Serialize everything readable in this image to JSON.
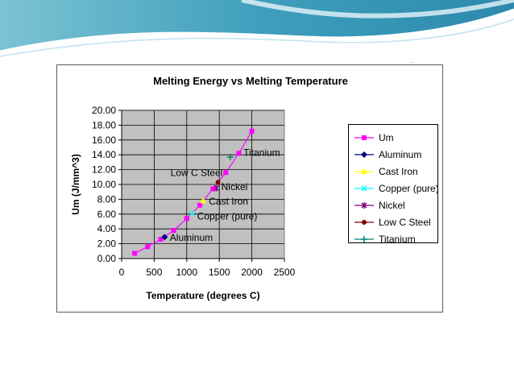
{
  "chart_data": {
    "type": "scatter",
    "title": "Melting Energy vs Melting Temperature",
    "xlabel": "Temperature (degrees C)",
    "ylabel": "Um (J/mm^3)",
    "xlim": [
      0,
      2500
    ],
    "ylim": [
      0,
      20
    ],
    "xticks": [
      "0",
      "500",
      "1000",
      "1500",
      "2000",
      "2500"
    ],
    "yticks": [
      "0.00",
      "2.00",
      "4.00",
      "6.00",
      "8.00",
      "10.00",
      "12.00",
      "14.00",
      "16.00",
      "18.00",
      "20.00"
    ],
    "grid": true,
    "legend_position": "right",
    "plot_background": "#c0c0c0",
    "series": [
      {
        "name": "Um",
        "color": "#ff00ff",
        "marker": "square",
        "line": true,
        "x": [
          200,
          400,
          600,
          800,
          1000,
          1200,
          1400,
          1600,
          1800,
          2000
        ],
        "y": [
          0.7,
          1.6,
          2.6,
          3.8,
          5.4,
          7.2,
          9.4,
          11.6,
          14.2,
          17.2
        ]
      },
      {
        "name": "Aluminum",
        "color": "#000080",
        "marker": "diamond",
        "line": false,
        "x": [
          660
        ],
        "y": [
          2.9
        ]
      },
      {
        "name": "Cast Iron",
        "color": "#ffff00",
        "marker": "triangle",
        "line": false,
        "x": [
          1250
        ],
        "y": [
          7.8
        ]
      },
      {
        "name": "Copper (pure)",
        "color": "#00ffff",
        "marker": "x",
        "line": false,
        "x": [
          1083
        ],
        "y": [
          6.1
        ]
      },
      {
        "name": "Nickel",
        "color": "#800080",
        "marker": "star",
        "line": false,
        "x": [
          1455
        ],
        "y": [
          9.5
        ]
      },
      {
        "name": "Low C Steel",
        "color": "#800000",
        "marker": "circle",
        "line": false,
        "x": [
          1480
        ],
        "y": [
          10.3
        ]
      },
      {
        "name": "Titanium",
        "color": "#008080",
        "marker": "plus",
        "line": false,
        "x": [
          1668
        ],
        "y": [
          13.7
        ]
      }
    ],
    "annotations": [
      {
        "text": "Titanium",
        "x": 1870,
        "y": 14.3
      },
      {
        "text": "Low C Steel",
        "x": 750,
        "y": 11.6
      },
      {
        "text": "Nickel",
        "x": 1530,
        "y": 9.7
      },
      {
        "text": "Cast Iron",
        "x": 1340,
        "y": 7.7
      },
      {
        "text": "Copper (pure)",
        "x": 1160,
        "y": 5.7
      },
      {
        "text": "Aluminum",
        "x": 740,
        "y": 2.8
      }
    ]
  }
}
